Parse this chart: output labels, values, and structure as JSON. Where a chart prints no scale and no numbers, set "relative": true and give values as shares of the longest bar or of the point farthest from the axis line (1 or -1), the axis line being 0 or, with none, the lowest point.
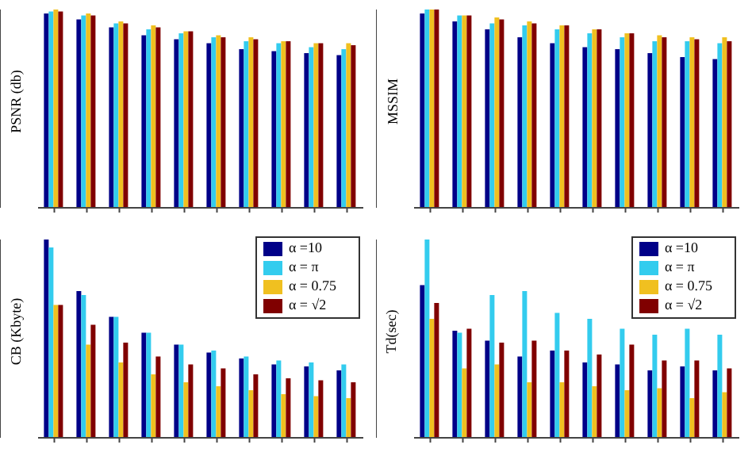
{
  "chart_data": [
    {
      "type": "bar",
      "ylabel": "PSNR (db)",
      "relative": true,
      "categories": [
        null,
        null,
        null,
        null,
        null,
        null,
        null,
        null,
        null,
        null
      ],
      "legend": false,
      "series": [
        {
          "color": "#000088",
          "values": [
            0.98,
            0.95,
            0.91,
            0.87,
            0.85,
            0.83,
            0.8,
            0.79,
            0.78,
            0.77
          ]
        },
        {
          "color": "#33ccee",
          "values": [
            0.99,
            0.97,
            0.93,
            0.9,
            0.88,
            0.86,
            0.84,
            0.83,
            0.81,
            0.8
          ]
        },
        {
          "color": "#f0c020",
          "values": [
            1,
            0.98,
            0.94,
            0.92,
            0.89,
            0.87,
            0.86,
            0.84,
            0.83,
            0.83
          ]
        },
        {
          "color": "#800000",
          "values": [
            0.99,
            0.97,
            0.93,
            0.91,
            0.89,
            0.86,
            0.85,
            0.84,
            0.83,
            0.82
          ]
        }
      ]
    },
    {
      "type": "bar",
      "ylabel": "MSSIM",
      "relative": true,
      "categories": [
        null,
        null,
        null,
        null,
        null,
        null,
        null,
        null,
        null,
        null
      ],
      "legend": false,
      "series": [
        {
          "color": "#000088",
          "values": [
            0.98,
            0.94,
            0.9,
            0.86,
            0.83,
            0.81,
            0.8,
            0.78,
            0.76,
            0.75
          ]
        },
        {
          "color": "#33ccee",
          "values": [
            1,
            0.97,
            0.93,
            0.92,
            0.9,
            0.88,
            0.86,
            0.84,
            0.84,
            0.83
          ]
        },
        {
          "color": "#f0c020",
          "values": [
            1,
            0.97,
            0.96,
            0.94,
            0.92,
            0.9,
            0.88,
            0.87,
            0.86,
            0.86
          ]
        },
        {
          "color": "#800000",
          "values": [
            1,
            0.97,
            0.95,
            0.93,
            0.92,
            0.9,
            0.88,
            0.86,
            0.85,
            0.84
          ]
        }
      ]
    },
    {
      "type": "bar",
      "ylabel": "CB (Kbyte)",
      "relative": true,
      "categories": [
        null,
        null,
        null,
        null,
        null,
        null,
        null,
        null,
        null,
        null
      ],
      "legend": "top right",
      "series": [
        {
          "name": "α =10",
          "color": "#000088",
          "values": [
            1,
            0.74,
            0.61,
            0.53,
            0.47,
            0.43,
            0.4,
            0.37,
            0.36,
            0.34
          ]
        },
        {
          "name": "α = π",
          "color": "#33ccee",
          "values": [
            0.96,
            0.72,
            0.61,
            0.53,
            0.47,
            0.44,
            0.41,
            0.39,
            0.38,
            0.37
          ]
        },
        {
          "name": "α = 0.75",
          "color": "#f0c020",
          "values": [
            0.67,
            0.47,
            0.38,
            0.32,
            0.28,
            0.26,
            0.24,
            0.22,
            0.21,
            0.2
          ]
        },
        {
          "name": "α = √2",
          "color": "#800000",
          "values": [
            0.67,
            0.57,
            0.48,
            0.41,
            0.37,
            0.35,
            0.32,
            0.3,
            0.29,
            0.28
          ]
        }
      ]
    },
    {
      "type": "bar",
      "ylabel": "Td(sec)",
      "relative": true,
      "categories": [
        null,
        null,
        null,
        null,
        null,
        null,
        null,
        null,
        null,
        null
      ],
      "legend": "top right",
      "series": [
        {
          "name": "α =10",
          "color": "#000088",
          "values": [
            0.77,
            0.54,
            0.49,
            0.41,
            0.44,
            0.38,
            0.37,
            0.34,
            0.36,
            0.34
          ]
        },
        {
          "name": "α = π",
          "color": "#33ccee",
          "values": [
            1,
            0.53,
            0.72,
            0.74,
            0.63,
            0.6,
            0.55,
            0.52,
            0.55,
            0.52
          ]
        },
        {
          "name": "α = 0.75",
          "color": "#f0c020",
          "values": [
            0.6,
            0.35,
            0.37,
            0.28,
            0.28,
            0.26,
            0.24,
            0.25,
            0.2,
            0.23
          ]
        },
        {
          "name": "α = √2",
          "color": "#800000",
          "values": [
            0.68,
            0.55,
            0.48,
            0.49,
            0.44,
            0.42,
            0.47,
            0.39,
            0.39,
            0.35
          ]
        }
      ]
    }
  ]
}
